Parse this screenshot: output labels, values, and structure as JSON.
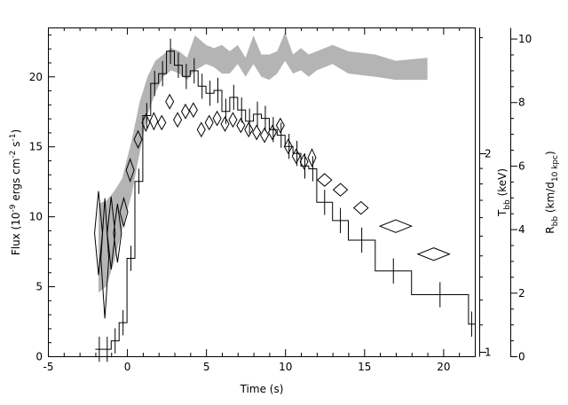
{
  "chart_data": {
    "type": "scatter",
    "xlabel": "Time (s)",
    "xlim": [
      -5,
      22
    ],
    "x_ticks": [
      -5,
      0,
      5,
      10,
      15,
      20
    ],
    "y_left": {
      "label_text": "Flux (10",
      "label_sup1": "-9",
      "label_mid": " ergs cm",
      "label_sup2": "-2",
      "label_mid2": " s",
      "label_sup3": "-1",
      "label_end": ")",
      "lim": [
        0,
        23.5
      ],
      "ticks": [
        0,
        5,
        10,
        15,
        20
      ]
    },
    "y_kT": {
      "label": "T",
      "label_sub": "bb",
      "label_unit": " (keV)",
      "scale": "log",
      "ticks": [
        1,
        2
      ]
    },
    "y_R": {
      "label": "R",
      "label_sub": "bb",
      "label_unit_open": " (km/d",
      "label_unit_sub": "10 kpc",
      "label_unit_close": ")",
      "lim": [
        0,
        10.35
      ],
      "ticks": [
        0,
        2,
        4,
        6,
        8,
        10
      ]
    },
    "series": [
      {
        "kind": "flux-histogram",
        "color": "#000000",
        "bins": [
          {
            "x0": -2.0,
            "x1": -1.5,
            "y": 0.5
          },
          {
            "x0": -1.5,
            "x1": -1.0,
            "y": 0.5
          },
          {
            "x0": -1.0,
            "x1": -0.5,
            "y": 1.1
          },
          {
            "x0": -0.5,
            "x1": 0.0,
            "y": 2.4
          },
          {
            "x0": 0.0,
            "x1": 0.5,
            "y": 7.0
          },
          {
            "x0": 0.5,
            "x1": 1.0,
            "y": 12.5
          },
          {
            "x0": 1.0,
            "x1": 1.5,
            "y": 17.2
          },
          {
            "x0": 1.5,
            "x1": 2.0,
            "y": 19.5
          },
          {
            "x0": 2.0,
            "x1": 2.5,
            "y": 20.2
          },
          {
            "x0": 2.5,
            "x1": 3.0,
            "y": 21.8
          },
          {
            "x0": 3.0,
            "x1": 3.5,
            "y": 20.8
          },
          {
            "x0": 3.5,
            "x1": 4.0,
            "y": 20.0
          },
          {
            "x0": 4.0,
            "x1": 4.5,
            "y": 20.4
          },
          {
            "x0": 4.5,
            "x1": 5.0,
            "y": 19.3
          },
          {
            "x0": 5.0,
            "x1": 5.5,
            "y": 18.8
          },
          {
            "x0": 5.5,
            "x1": 6.0,
            "y": 19.0
          },
          {
            "x0": 6.0,
            "x1": 6.5,
            "y": 17.5
          },
          {
            "x0": 6.5,
            "x1": 7.0,
            "y": 18.5
          },
          {
            "x0": 7.0,
            "x1": 7.5,
            "y": 17.6
          },
          {
            "x0": 7.5,
            "x1": 8.0,
            "y": 16.8
          },
          {
            "x0": 8.0,
            "x1": 8.5,
            "y": 17.3
          },
          {
            "x0": 8.5,
            "x1": 9.0,
            "y": 17.0
          },
          {
            "x0": 9.0,
            "x1": 9.5,
            "y": 16.2
          },
          {
            "x0": 9.5,
            "x1": 10.0,
            "y": 15.8
          },
          {
            "x0": 10.0,
            "x1": 10.5,
            "y": 15.0
          },
          {
            "x0": 10.5,
            "x1": 11.0,
            "y": 14.5
          },
          {
            "x0": 11.0,
            "x1": 11.5,
            "y": 13.6
          },
          {
            "x0": 11.5,
            "x1": 12.0,
            "y": 13.4
          },
          {
            "x0": 12.0,
            "x1": 13.0,
            "y": 11.0
          },
          {
            "x0": 13.0,
            "x1": 14.0,
            "y": 9.7
          },
          {
            "x0": 14.0,
            "x1": 15.7,
            "y": 8.3
          },
          {
            "x0": 15.7,
            "x1": 18.0,
            "y": 6.1
          },
          {
            "x0": 18.0,
            "x1": 21.6,
            "y": 4.4
          },
          {
            "x0": 21.6,
            "x1": 22.0,
            "y": 2.3
          }
        ]
      },
      {
        "kind": "R-band",
        "color": "#b4b4b4",
        "points": [
          {
            "x": -1.8,
            "lo": 2.0,
            "hi": 4.8
          },
          {
            "x": -1.3,
            "lo": 2.2,
            "hi": 4.9
          },
          {
            "x": -0.8,
            "lo": 3.0,
            "hi": 5.2
          },
          {
            "x": -0.3,
            "lo": 4.0,
            "hi": 5.6
          },
          {
            "x": 0.3,
            "lo": 5.1,
            "hi": 6.8
          },
          {
            "x": 0.8,
            "lo": 6.4,
            "hi": 8.0
          },
          {
            "x": 1.3,
            "lo": 7.6,
            "hi": 8.8
          },
          {
            "x": 1.8,
            "lo": 8.3,
            "hi": 9.3
          },
          {
            "x": 2.3,
            "lo": 8.8,
            "hi": 9.5
          },
          {
            "x": 2.8,
            "lo": 9.0,
            "hi": 9.7
          },
          {
            "x": 3.3,
            "lo": 8.9,
            "hi": 9.6
          },
          {
            "x": 3.8,
            "lo": 8.7,
            "hi": 9.4
          },
          {
            "x": 4.3,
            "lo": 9.0,
            "hi": 10.1
          },
          {
            "x": 5.0,
            "lo": 9.2,
            "hi": 9.8
          },
          {
            "x": 5.5,
            "lo": 9.1,
            "hi": 9.7
          },
          {
            "x": 6.0,
            "lo": 8.9,
            "hi": 9.8
          },
          {
            "x": 6.5,
            "lo": 8.9,
            "hi": 9.6
          },
          {
            "x": 7.0,
            "lo": 9.2,
            "hi": 9.8
          },
          {
            "x": 7.5,
            "lo": 8.8,
            "hi": 9.4
          },
          {
            "x": 8.0,
            "lo": 9.2,
            "hi": 10.1
          },
          {
            "x": 8.5,
            "lo": 8.8,
            "hi": 9.5
          },
          {
            "x": 9.0,
            "lo": 8.7,
            "hi": 9.5
          },
          {
            "x": 9.5,
            "lo": 8.9,
            "hi": 9.6
          },
          {
            "x": 10.0,
            "lo": 9.3,
            "hi": 10.2
          },
          {
            "x": 10.5,
            "lo": 8.9,
            "hi": 9.5
          },
          {
            "x": 11.0,
            "lo": 9.0,
            "hi": 9.7
          },
          {
            "x": 11.5,
            "lo": 8.8,
            "hi": 9.5
          },
          {
            "x": 12.0,
            "lo": 9.0,
            "hi": 9.6
          },
          {
            "x": 13.0,
            "lo": 9.2,
            "hi": 9.8
          },
          {
            "x": 14.0,
            "lo": 8.9,
            "hi": 9.6
          },
          {
            "x": 15.7,
            "lo": 8.8,
            "hi": 9.5
          },
          {
            "x": 17.0,
            "lo": 8.7,
            "hi": 9.3
          },
          {
            "x": 19.0,
            "lo": 8.7,
            "hi": 9.4
          }
        ]
      },
      {
        "kind": "kT-diamonds",
        "color": "#000000",
        "points": [
          {
            "x": -1.8,
            "yc": 8.8,
            "dy": 3.0,
            "dx": 0.25
          },
          {
            "x": -1.4,
            "yc": 7.0,
            "dy": 4.3,
            "dx": 0.25
          },
          {
            "x": -1.0,
            "yc": 8.8,
            "dy": 2.6,
            "dx": 0.25
          },
          {
            "x": -0.6,
            "yc": 8.8,
            "dy": 2.1,
            "dx": 0.25
          },
          {
            "x": -0.2,
            "yc": 10.3,
            "dy": 1.0,
            "dx": 0.25
          },
          {
            "x": 0.2,
            "yc": 13.3,
            "dy": 0.8,
            "dx": 0.25
          },
          {
            "x": 0.7,
            "yc": 15.5,
            "dy": 0.6,
            "dx": 0.25
          },
          {
            "x": 1.2,
            "yc": 16.7,
            "dy": 0.6,
            "dx": 0.25
          },
          {
            "x": 1.7,
            "yc": 16.8,
            "dy": 0.6,
            "dx": 0.25
          },
          {
            "x": 2.2,
            "yc": 16.7,
            "dy": 0.5,
            "dx": 0.25
          },
          {
            "x": 2.7,
            "yc": 18.2,
            "dy": 0.5,
            "dx": 0.25
          },
          {
            "x": 3.2,
            "yc": 16.9,
            "dy": 0.5,
            "dx": 0.25
          },
          {
            "x": 3.7,
            "yc": 17.5,
            "dy": 0.5,
            "dx": 0.25
          },
          {
            "x": 4.2,
            "yc": 17.6,
            "dy": 0.5,
            "dx": 0.25
          },
          {
            "x": 4.7,
            "yc": 16.2,
            "dy": 0.5,
            "dx": 0.25
          },
          {
            "x": 5.2,
            "yc": 16.7,
            "dy": 0.5,
            "dx": 0.25
          },
          {
            "x": 5.7,
            "yc": 17.0,
            "dy": 0.5,
            "dx": 0.25
          },
          {
            "x": 6.2,
            "yc": 16.6,
            "dy": 0.5,
            "dx": 0.25
          },
          {
            "x": 6.7,
            "yc": 16.9,
            "dy": 0.5,
            "dx": 0.25
          },
          {
            "x": 7.2,
            "yc": 16.5,
            "dy": 0.5,
            "dx": 0.25
          },
          {
            "x": 7.7,
            "yc": 16.2,
            "dy": 0.5,
            "dx": 0.25
          },
          {
            "x": 8.2,
            "yc": 16.0,
            "dy": 0.5,
            "dx": 0.25
          },
          {
            "x": 8.7,
            "yc": 15.8,
            "dy": 0.5,
            "dx": 0.25
          },
          {
            "x": 9.2,
            "yc": 16.0,
            "dy": 0.5,
            "dx": 0.25
          },
          {
            "x": 9.7,
            "yc": 16.5,
            "dy": 0.5,
            "dx": 0.25
          },
          {
            "x": 10.2,
            "yc": 15.0,
            "dy": 0.5,
            "dx": 0.25
          },
          {
            "x": 10.7,
            "yc": 14.3,
            "dy": 0.5,
            "dx": 0.25
          },
          {
            "x": 11.2,
            "yc": 13.9,
            "dy": 0.5,
            "dx": 0.25
          },
          {
            "x": 11.7,
            "yc": 14.2,
            "dy": 0.6,
            "dx": 0.25
          },
          {
            "x": 12.5,
            "yc": 12.6,
            "dy": 0.45,
            "dx": 0.45
          },
          {
            "x": 13.5,
            "yc": 11.9,
            "dy": 0.45,
            "dx": 0.45
          },
          {
            "x": 14.8,
            "yc": 10.6,
            "dy": 0.45,
            "dx": 0.45
          },
          {
            "x": 17.0,
            "yc": 9.3,
            "dy": 0.45,
            "dx": 1.0
          },
          {
            "x": 19.4,
            "yc": 7.3,
            "dy": 0.45,
            "dx": 1.0
          }
        ]
      }
    ]
  }
}
